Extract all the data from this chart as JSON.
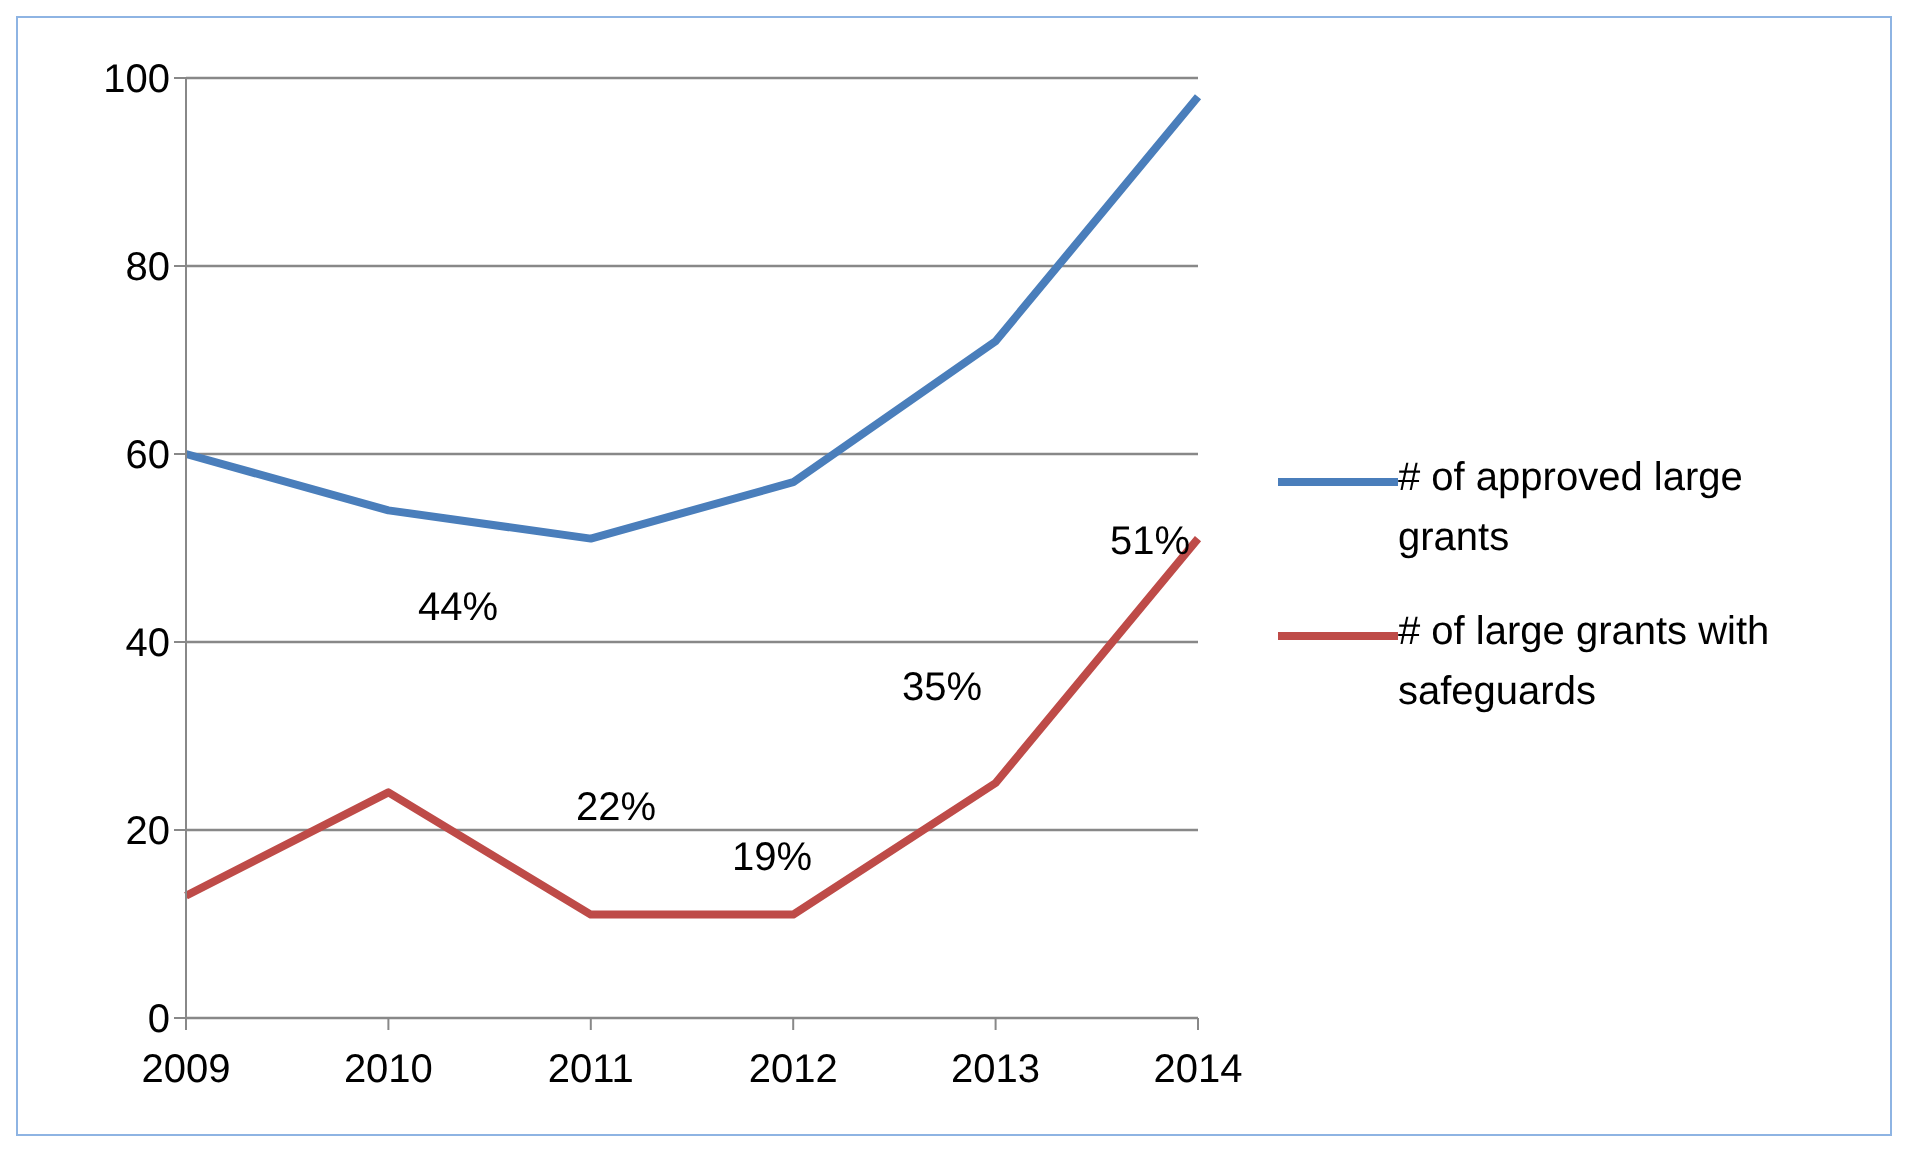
{
  "chart_data": {
    "type": "line",
    "categories": [
      "2009",
      "2010",
      "2011",
      "2012",
      "2013",
      "2014"
    ],
    "series": [
      {
        "name": "# of approved large grants",
        "color": "#4a7ebb",
        "values": [
          60,
          54,
          51,
          57,
          72,
          98
        ]
      },
      {
        "name": "# of large grants with safeguards",
        "color": "#be4b48",
        "values": [
          13,
          24,
          11,
          11,
          25,
          51
        ]
      }
    ],
    "ylim": [
      0,
      100
    ],
    "yticks": [
      0,
      20,
      40,
      60,
      80,
      100
    ],
    "grid": "y",
    "legend": "right",
    "marker": "none",
    "line_style": "solid",
    "annotations": [
      "44%",
      "22%",
      "19%",
      "35%",
      "51%"
    ]
  }
}
